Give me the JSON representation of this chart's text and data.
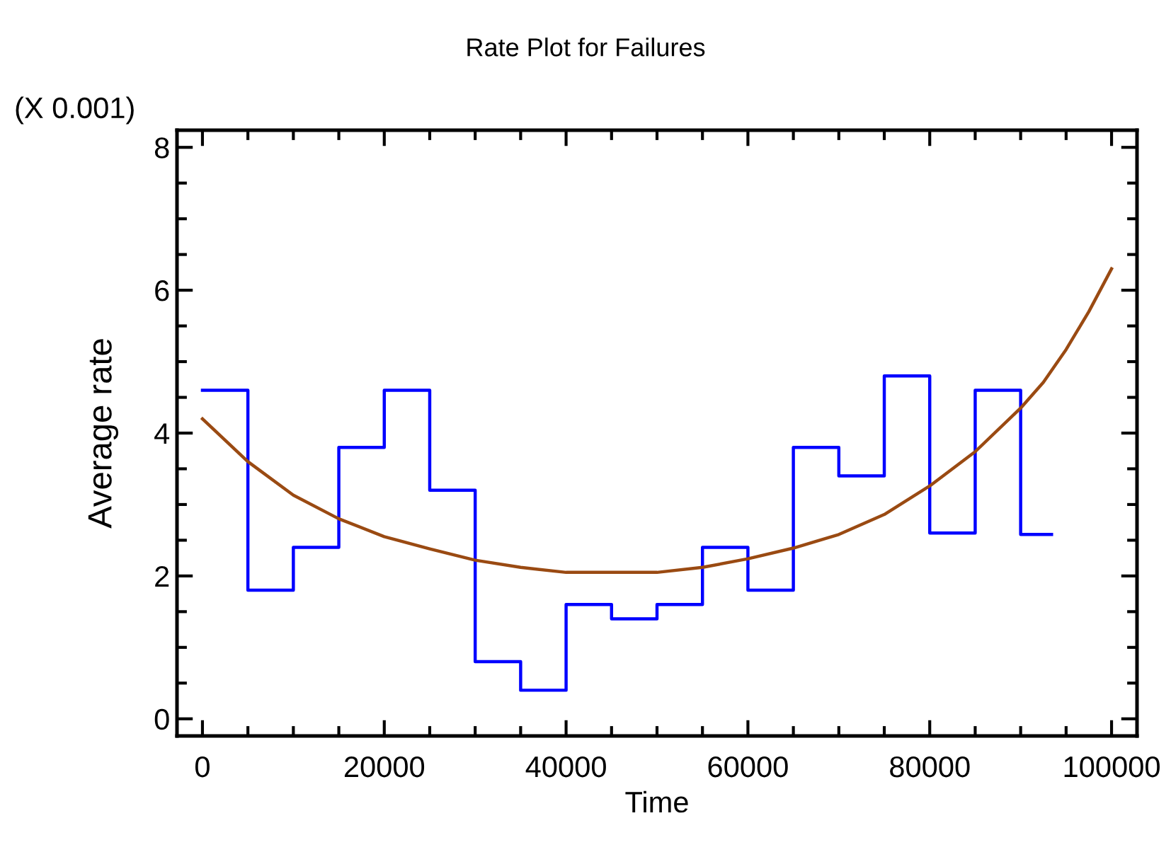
{
  "chart_data": {
    "type": "line",
    "title": "Rate Plot for Failures",
    "xlabel": "Time",
    "ylabel": "Average rate",
    "annotations": [
      "(X 0.001)"
    ],
    "series": [
      {
        "type": "step",
        "color": "#0000ff",
        "x": [
          0,
          5000,
          10000,
          15000,
          20000,
          25000,
          30000,
          35000,
          40000,
          45000,
          50000,
          55000,
          60000,
          65000,
          70000,
          75000,
          80000,
          85000,
          90000,
          93400
        ],
        "values": [
          4.6,
          1.8,
          2.4,
          3.8,
          4.6,
          3.2,
          0.8,
          0.4,
          1.6,
          1.4,
          1.6,
          2.4,
          1.8,
          3.8,
          3.4,
          4.8,
          2.6,
          4.6,
          2.58,
          2.58
        ]
      },
      {
        "color": "#9a4a12",
        "x": [
          0,
          5000,
          10000,
          15000,
          20000,
          25000,
          30000,
          35000,
          40000,
          45000,
          50000,
          55000,
          60000,
          65000,
          70000,
          75000,
          80000,
          85000,
          90000,
          92500,
          95000,
          97500,
          100000
        ],
        "values": [
          4.2,
          3.6,
          3.13,
          2.8,
          2.55,
          2.38,
          2.22,
          2.12,
          2.05,
          2.05,
          2.05,
          2.12,
          2.24,
          2.39,
          2.58,
          2.86,
          3.26,
          3.74,
          4.35,
          4.71,
          5.17,
          5.7,
          6.3
        ]
      }
    ],
    "xlim": [
      -2800,
      102800
    ],
    "ylim": [
      -0.24,
      8.24
    ],
    "xticks": [
      0,
      20000,
      40000,
      60000,
      80000,
      100000
    ],
    "yticks": [
      0,
      2,
      4,
      6,
      8
    ],
    "grid": false,
    "legend": false
  }
}
